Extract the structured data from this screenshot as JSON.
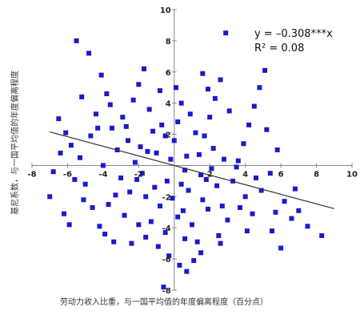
{
  "chart_data": {
    "type": "scatter",
    "xlabel": "劳动力收入比重，与一国平均值的年度偏离程度（百分点）",
    "ylabel": "基尼系数，与一国平均值的年度偏离程度",
    "xlim": [
      -8,
      10
    ],
    "ylim": [
      -8,
      10
    ],
    "x_ticks": [
      -8,
      -6,
      -4,
      -2,
      0,
      2,
      4,
      6,
      8,
      10
    ],
    "y_ticks": [
      -8,
      -6,
      -4,
      -2,
      0,
      2,
      4,
      6,
      8,
      10
    ],
    "x_tick_labels": [
      "-8",
      "-6",
      "-4",
      "-2",
      "",
      "2",
      "4",
      "6",
      "8",
      "10"
    ],
    "y_tick_labels": [
      "-8",
      "-6",
      "-4",
      "-2",
      "",
      "2",
      "4",
      "6",
      "8",
      "10"
    ],
    "grid": false,
    "marker_color": "#1a1acc",
    "trendline_color": "#333333",
    "annotation": {
      "equation": "y = –0.308***x",
      "r2": "R² = 0.08"
    },
    "trendline": {
      "x": [
        -7,
        9
      ],
      "y": [
        2.156,
        -2.772
      ]
    },
    "series": [
      {
        "points": [
          [
            -6.5,
            3.0
          ],
          [
            -5.5,
            8.0
          ],
          [
            -4.8,
            7.2
          ],
          [
            -5.2,
            4.4
          ],
          [
            -6.1,
            2.1
          ],
          [
            -5.8,
            1.3
          ],
          [
            -6.8,
            -0.4
          ],
          [
            -7.0,
            -2.0
          ],
          [
            -6.2,
            -3.1
          ],
          [
            -5.9,
            -3.8
          ],
          [
            -5.0,
            -1.2
          ],
          [
            -5.3,
            0.5
          ],
          [
            -4.7,
            1.9
          ],
          [
            -4.4,
            3.3
          ],
          [
            -4.1,
            5.8
          ],
          [
            -3.8,
            4.6
          ],
          [
            -3.5,
            2.4
          ],
          [
            -3.2,
            1.0
          ],
          [
            -3.0,
            -0.8
          ],
          [
            -3.7,
            -2.5
          ],
          [
            -4.2,
            -3.9
          ],
          [
            -3.9,
            -4.4
          ],
          [
            -2.8,
            -3.2
          ],
          [
            -2.5,
            -1.7
          ],
          [
            -2.2,
            0.2
          ],
          [
            -2.6,
            1.6
          ],
          [
            -2.9,
            3.1
          ],
          [
            -2.3,
            4.2
          ],
          [
            -2.0,
            5.2
          ],
          [
            -1.7,
            6.2
          ],
          [
            -1.4,
            3.6
          ],
          [
            -1.2,
            2.2
          ],
          [
            -1.5,
            0.9
          ],
          [
            -1.8,
            -0.5
          ],
          [
            -1.1,
            -1.4
          ],
          [
            -0.8,
            -2.6
          ],
          [
            -1.3,
            -3.6
          ],
          [
            -0.5,
            -4.3
          ],
          [
            -0.9,
            -5.2
          ],
          [
            -0.3,
            -5.8
          ],
          [
            -0.4,
            -1.0
          ],
          [
            -0.2,
            0.4
          ],
          [
            0.0,
            1.6
          ],
          [
            0.2,
            2.8
          ],
          [
            0.4,
            4.0
          ],
          [
            0.1,
            5.0
          ],
          [
            0.6,
            -0.3
          ],
          [
            0.8,
            -1.6
          ],
          [
            0.5,
            -2.9
          ],
          [
            1.0,
            -3.8
          ],
          [
            1.3,
            -4.9
          ],
          [
            1.1,
            -6.1
          ],
          [
            0.7,
            -6.8
          ],
          [
            1.6,
            -2.2
          ],
          [
            1.8,
            -0.9
          ],
          [
            1.4,
            0.7
          ],
          [
            1.7,
            1.9
          ],
          [
            2.0,
            3.1
          ],
          [
            2.3,
            4.3
          ],
          [
            2.6,
            5.5
          ],
          [
            2.9,
            8.5
          ],
          [
            2.1,
            -0.2
          ],
          [
            2.4,
            -1.3
          ],
          [
            2.7,
            -2.6
          ],
          [
            3.0,
            -3.5
          ],
          [
            2.5,
            -4.5
          ],
          [
            3.3,
            -1.0
          ],
          [
            3.6,
            0.3
          ],
          [
            3.9,
            1.4
          ],
          [
            4.2,
            2.6
          ],
          [
            4.5,
            3.8
          ],
          [
            4.8,
            5.0
          ],
          [
            5.1,
            6.1
          ],
          [
            4.0,
            -2.0
          ],
          [
            4.4,
            -3.1
          ],
          [
            4.9,
            -1.6
          ],
          [
            5.4,
            -0.5
          ],
          [
            5.8,
            1.0
          ],
          [
            6.2,
            -2.3
          ],
          [
            6.6,
            -3.4
          ],
          [
            5.5,
            -4.2
          ],
          [
            6.0,
            -5.3
          ],
          [
            7.0,
            -2.9
          ],
          [
            7.5,
            -3.9
          ],
          [
            8.3,
            -4.5
          ],
          [
            6.8,
            -1.5
          ],
          [
            5.2,
            2.3
          ],
          [
            3.1,
            3.5
          ],
          [
            1.9,
            4.9
          ],
          [
            -0.6,
            -7.8
          ],
          [
            0.3,
            -6.4
          ],
          [
            1.5,
            -5.6
          ],
          [
            -1.6,
            -4.6
          ],
          [
            -2.4,
            -5.0
          ],
          [
            -3.4,
            -4.9
          ],
          [
            -4.6,
            -2.7
          ],
          [
            -5.6,
            -0.9
          ],
          [
            -6.4,
            0.8
          ],
          [
            -4.0,
            0.0
          ],
          [
            -3.3,
            -1.9
          ],
          [
            -2.7,
            2.5
          ],
          [
            -1.9,
            1.2
          ],
          [
            -0.7,
            2.6
          ],
          [
            0.9,
            3.3
          ],
          [
            1.2,
            2.1
          ],
          [
            -0.1,
            -2.1
          ],
          [
            0.4,
            -1.2
          ],
          [
            1.5,
            -0.6
          ],
          [
            2.2,
            1.1
          ],
          [
            3.5,
            -0.1
          ],
          [
            -1.0,
            0.8
          ],
          [
            -0.5,
            1.9
          ],
          [
            0.7,
            0.6
          ],
          [
            2.8,
            0.4
          ],
          [
            -2.1,
            -0.9
          ],
          [
            -1.6,
            -2.0
          ],
          [
            0.2,
            -3.3
          ],
          [
            1.9,
            -2.8
          ],
          [
            3.7,
            -2.7
          ],
          [
            4.6,
            -0.8
          ],
          [
            -3.6,
            3.9
          ],
          [
            -4.3,
            2.4
          ],
          [
            -5.1,
            -2.2
          ],
          [
            -2.0,
            -3.8
          ],
          [
            0.6,
            -4.7
          ],
          [
            2.6,
            -5.0
          ],
          [
            4.1,
            -4.2
          ],
          [
            5.7,
            -3.0
          ],
          [
            -0.8,
            4.8
          ],
          [
            1.6,
            5.9
          ]
        ]
      }
    ]
  }
}
